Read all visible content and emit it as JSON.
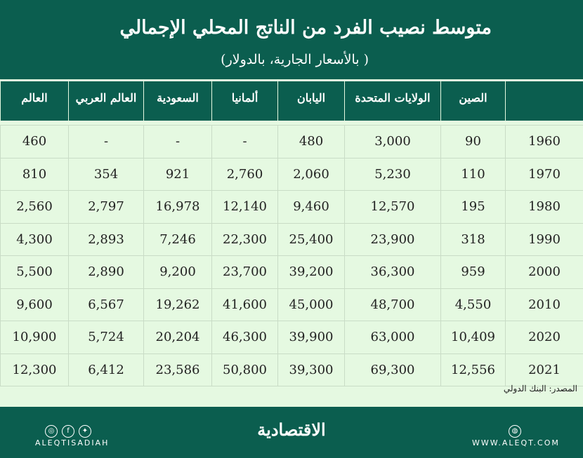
{
  "title": "متوسط نصيب الفرد من الناتج المحلي الإجمالي",
  "subtitle": "( بالأسعار الجارية، بالدولار)",
  "source": "المصدر: البنك الدولي",
  "footer": {
    "logo": "الاقتصادية",
    "handle": "ALEQTISADIAH",
    "website": "WWW.ALEQT.COM",
    "icons": [
      "instagram-icon",
      "facebook-icon",
      "twitter-icon",
      "globe-icon"
    ]
  },
  "chart_data": {
    "type": "table",
    "columns": [
      "",
      "الصين",
      "الولايات المتحدة",
      "اليابان",
      "ألمانيا",
      "السعودية",
      "العالم العربي",
      "العالم"
    ],
    "rows": [
      [
        "1960",
        "90",
        "3,000",
        "480",
        "-",
        "-",
        "-",
        "460"
      ],
      [
        "1970",
        "110",
        "5,230",
        "2,060",
        "2,760",
        "921",
        "354",
        "810"
      ],
      [
        "1980",
        "195",
        "12,570",
        "9,460",
        "12,140",
        "16,978",
        "2,797",
        "2,560"
      ],
      [
        "1990",
        "318",
        "23,900",
        "25,400",
        "22,300",
        "7,246",
        "2,893",
        "4,300"
      ],
      [
        "2000",
        "959",
        "36,300",
        "39,200",
        "23,700",
        "9,200",
        "2,890",
        "5,500"
      ],
      [
        "2010",
        "4,550",
        "48,700",
        "45,000",
        "41,600",
        "19,262",
        "6,567",
        "9,600"
      ],
      [
        "2020",
        "10,409",
        "63,000",
        "39,900",
        "46,300",
        "20,204",
        "5,724",
        "10,900"
      ],
      [
        "2021",
        "12,556",
        "69,300",
        "39,300",
        "50,800",
        "23,586",
        "6,412",
        "12,300"
      ]
    ]
  }
}
